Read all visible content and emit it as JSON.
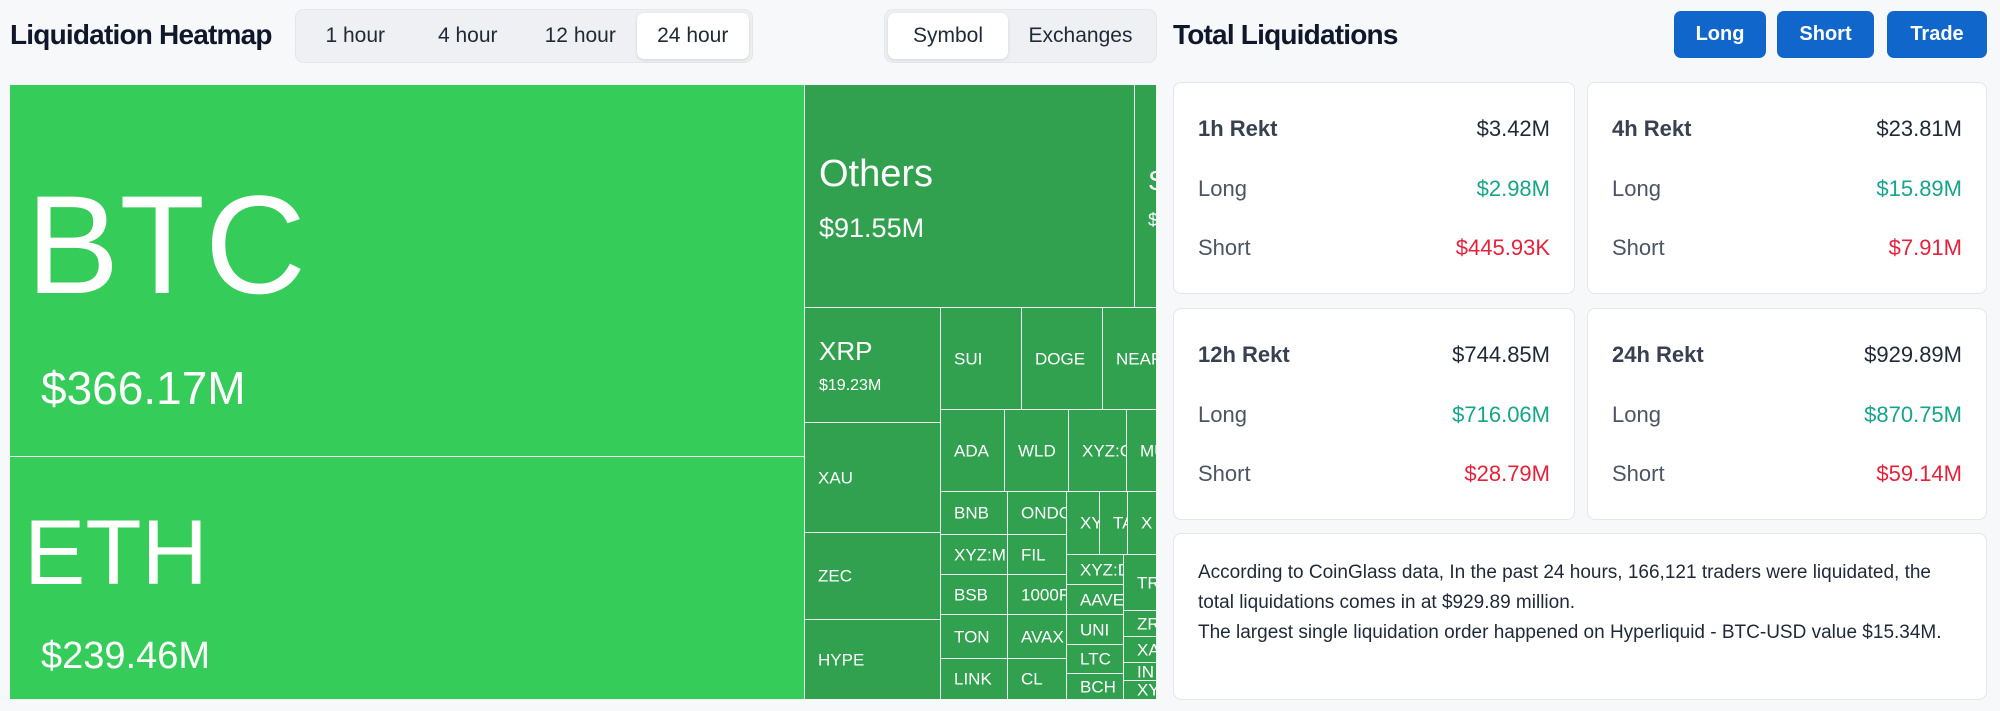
{
  "heatmap": {
    "title": "Liquidation Heatmap",
    "time_options": [
      "1 hour",
      "4 hour",
      "12 hour",
      "24 hour"
    ],
    "active_time_index": 3,
    "mode_options": [
      "Symbol",
      "Exchanges"
    ],
    "active_mode_index": 0
  },
  "tiles": {
    "btc": {
      "symbol": "BTC",
      "value": "$366.17M"
    },
    "eth": {
      "symbol": "ETH",
      "value": "$239.46M"
    },
    "others": {
      "symbol": "Others",
      "value": "$91.55M"
    },
    "xrp": {
      "symbol": "XRP",
      "value": "$19.23M"
    },
    "sol_partial": {
      "symbol": "S",
      "value": "$"
    },
    "sui": "SUI",
    "doge": "DOGE",
    "near": "NEAR",
    "xau": "XAU",
    "zec": "ZEC",
    "hype": "HYPE",
    "ada": "ADA",
    "wld": "WLD",
    "xyz_c": "XYZ:C",
    "mu": "MU",
    "bnb": "BNB",
    "ondo": "ONDO",
    "xy": "XY",
    "ta": "TA",
    "x1": "X",
    "xyz_mu": "XYZ:MU",
    "fil": "FIL",
    "xyz_d": "XYZ:D",
    "tr": "TR",
    "bsb": "BSB",
    "k1000": "1000F",
    "aave": "AAVE",
    "zr": "ZR",
    "ton": "TON",
    "avax": "AVAX",
    "uni": "UNI",
    "xa": "XA",
    "link": "LINK",
    "cl": "CL",
    "ltc": "LTC",
    "in": "IN",
    "bch": "BCH",
    "xy2": "XY"
  },
  "totals": {
    "title": "Total Liquidations",
    "buttons": {
      "long": "Long",
      "short": "Short",
      "trade": "Trade"
    },
    "cards": [
      {
        "label": "1h Rekt",
        "total": "$3.42M",
        "long_label": "Long",
        "long": "$2.98M",
        "short_label": "Short",
        "short": "$445.93K"
      },
      {
        "label": "4h Rekt",
        "total": "$23.81M",
        "long_label": "Long",
        "long": "$15.89M",
        "short_label": "Short",
        "short": "$7.91M"
      },
      {
        "label": "12h Rekt",
        "total": "$744.85M",
        "long_label": "Long",
        "long": "$716.06M",
        "short_label": "Short",
        "short": "$28.79M"
      },
      {
        "label": "24h Rekt",
        "total": "$929.89M",
        "long_label": "Long",
        "long": "$870.75M",
        "short_label": "Short",
        "short": "$59.14M"
      }
    ],
    "summary_line1": "According to CoinGlass data, In the past 24 hours, 166,121 traders were liquidated, the total liquidations comes in at $929.89 million.",
    "summary_line2": "The largest single liquidation order happened on Hyperliquid - BTC-USD value $15.34M."
  },
  "colors": {
    "accent": "#1166cc",
    "tile_bright": "#35cc5a",
    "tile_dark": "#31a14f",
    "long": "#16a58a",
    "short": "#e5213b"
  }
}
